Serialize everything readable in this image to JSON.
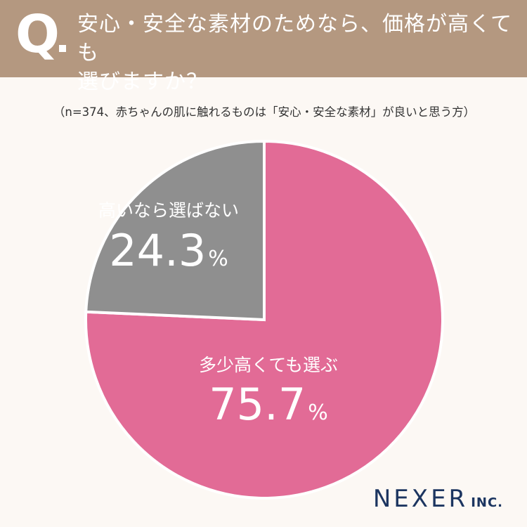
{
  "header": {
    "q_label": "Q",
    "question_line1": "安心・安全な素材のためなら、価格が高くても",
    "question_line2": "選びますか？",
    "background_color": "#b49880"
  },
  "note": "（n=374、赤ちゃんの肌に触れるものは「安心・安全な素材」が良いと思う方）",
  "chart_data": {
    "type": "pie",
    "start": "12 o'clock",
    "direction": "clockwise",
    "slices": [
      {
        "label": "多少高くても選ぶ",
        "value": 75.7,
        "value_text": "75.7",
        "unit": "%",
        "color": "#e26b96"
      },
      {
        "label": "高いなら選ばない",
        "value": 24.3,
        "value_text": "24.3",
        "unit": "%",
        "color": "#8f8f8f"
      }
    ]
  },
  "logo": {
    "main": "NEXER",
    "suffix": "INC.",
    "color": "#1c3560"
  }
}
